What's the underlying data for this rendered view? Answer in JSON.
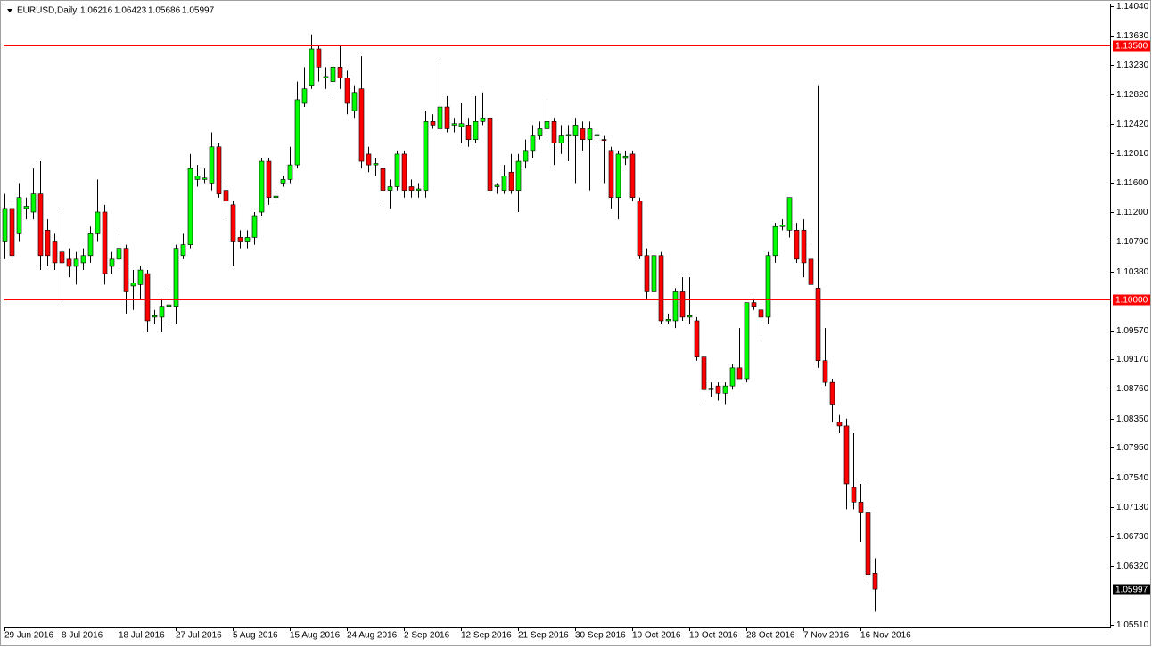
{
  "chart_data": {
    "type": "candlestick",
    "symbol": "EURUSD,Daily",
    "categories": [
      "29 Jun 2016",
      null,
      null,
      null,
      null,
      null,
      null,
      null,
      "8 Jul 2016",
      null,
      null,
      null,
      null,
      null,
      null,
      null,
      "18 Jul 2016",
      null,
      null,
      null,
      null,
      null,
      null,
      null,
      "27 Jul 2016",
      null,
      null,
      null,
      null,
      null,
      null,
      null,
      "5 Aug 2016",
      null,
      null,
      null,
      null,
      null,
      null,
      null,
      "15 Aug 2016",
      null,
      null,
      null,
      null,
      null,
      null,
      null,
      "24 Aug 2016",
      null,
      null,
      null,
      null,
      null,
      null,
      null,
      "2 Sep 2016",
      null,
      null,
      null,
      null,
      null,
      null,
      null,
      "12 Sep 2016",
      null,
      null,
      null,
      null,
      null,
      null,
      null,
      "21 Sep 2016",
      null,
      null,
      null,
      null,
      null,
      null,
      null,
      "30 Sep 2016",
      null,
      null,
      null,
      null,
      null,
      null,
      null,
      "10 Oct 2016",
      null,
      null,
      null,
      null,
      null,
      null,
      null,
      "19 Oct 2016",
      null,
      null,
      null,
      null,
      null,
      null,
      null,
      "28 Oct 2016",
      null,
      null,
      null,
      null,
      null,
      null,
      null,
      "7 Nov 2016",
      null,
      null,
      null,
      null,
      null,
      null,
      null,
      "16 Nov 2016",
      null,
      null
    ],
    "ohlc": [
      [
        1.108,
        1.1145,
        1.1055,
        1.1125
      ],
      [
        1.1125,
        1.1135,
        1.105,
        1.106
      ],
      [
        1.109,
        1.116,
        1.108,
        1.114
      ],
      [
        1.1125,
        1.114,
        1.111,
        1.1128
      ],
      [
        1.112,
        1.118,
        1.111,
        1.1145
      ],
      [
        1.1145,
        1.119,
        1.104,
        1.106
      ],
      [
        1.1095,
        1.111,
        1.1045,
        1.106
      ],
      [
        1.108,
        1.109,
        1.104,
        1.105
      ],
      [
        1.1065,
        1.112,
        1.099,
        1.105
      ],
      [
        1.1055,
        1.107,
        1.103,
        1.1045
      ],
      [
        1.1045,
        1.1065,
        1.102,
        1.1055
      ],
      [
        1.105,
        1.107,
        1.104,
        1.106
      ],
      [
        1.106,
        1.11,
        1.105,
        1.109
      ],
      [
        1.109,
        1.1165,
        1.108,
        1.112
      ],
      [
        1.112,
        1.113,
        1.102,
        1.1035
      ],
      [
        1.1045,
        1.1065,
        1.1035,
        1.1055
      ],
      [
        1.1055,
        1.109,
        1.1045,
        1.107
      ],
      [
        1.107,
        1.1075,
        1.098,
        1.101
      ],
      [
        1.1018,
        1.104,
        1.0985,
        1.1022
      ],
      [
        1.102,
        1.1045,
        1.1,
        1.104
      ],
      [
        1.1035,
        1.104,
        1.0955,
        1.097
      ],
      [
        1.0975,
        1.0985,
        1.0965,
        1.0977
      ],
      [
        1.0975,
        1.1,
        1.0955,
        1.099
      ],
      [
        1.099,
        1.101,
        1.0965,
        1.0992
      ],
      [
        1.099,
        1.1075,
        1.0965,
        1.107
      ],
      [
        1.106,
        1.109,
        1.1055,
        1.1075
      ],
      [
        1.1075,
        1.12,
        1.107,
        1.118
      ],
      [
        1.1165,
        1.1185,
        1.1155,
        1.117
      ],
      [
        1.1165,
        1.118,
        1.116,
        1.1167
      ],
      [
        1.116,
        1.123,
        1.115,
        1.121
      ],
      [
        1.121,
        1.1215,
        1.114,
        1.1145
      ],
      [
        1.115,
        1.116,
        1.111,
        1.1135
      ],
      [
        1.113,
        1.1135,
        1.1045,
        1.108
      ],
      [
        1.1085,
        1.1095,
        1.107,
        1.108
      ],
      [
        1.108,
        1.1095,
        1.107,
        1.1085
      ],
      [
        1.1085,
        1.112,
        1.1075,
        1.1115
      ],
      [
        1.112,
        1.1195,
        1.1115,
        1.119
      ],
      [
        1.119,
        1.1195,
        1.113,
        1.114
      ],
      [
        1.114,
        1.115,
        1.1135,
        1.1142
      ],
      [
        1.116,
        1.117,
        1.1155,
        1.1165
      ],
      [
        1.1165,
        1.121,
        1.116,
        1.1185
      ],
      [
        1.1185,
        1.13,
        1.118,
        1.1275
      ],
      [
        1.127,
        1.132,
        1.1265,
        1.129
      ],
      [
        1.1295,
        1.1365,
        1.129,
        1.1345
      ],
      [
        1.1345,
        1.135,
        1.13,
        1.132
      ],
      [
        1.1305,
        1.132,
        1.129,
        1.1307
      ],
      [
        1.13,
        1.133,
        1.128,
        1.132
      ],
      [
        1.132,
        1.135,
        1.129,
        1.1305
      ],
      [
        1.1305,
        1.1315,
        1.1255,
        1.127
      ],
      [
        1.126,
        1.1295,
        1.125,
        1.1285
      ],
      [
        1.129,
        1.1335,
        1.118,
        1.119
      ],
      [
        1.12,
        1.121,
        1.1175,
        1.1185
      ],
      [
        1.1185,
        1.1195,
        1.117,
        1.1187
      ],
      [
        1.118,
        1.119,
        1.113,
        1.115
      ],
      [
        1.115,
        1.1165,
        1.1125,
        1.1155
      ],
      [
        1.1155,
        1.1205,
        1.115,
        1.12
      ],
      [
        1.12,
        1.1205,
        1.114,
        1.115
      ],
      [
        1.1155,
        1.1165,
        1.114,
        1.115
      ],
      [
        1.115,
        1.116,
        1.114,
        1.1152
      ],
      [
        1.115,
        1.126,
        1.114,
        1.1245
      ],
      [
        1.1245,
        1.1255,
        1.1235,
        1.124
      ],
      [
        1.1235,
        1.1325,
        1.123,
        1.1265
      ],
      [
        1.1265,
        1.128,
        1.123,
        1.1235
      ],
      [
        1.124,
        1.125,
        1.123,
        1.1242
      ],
      [
        1.1238,
        1.127,
        1.1215,
        1.1242
      ],
      [
        1.124,
        1.125,
        1.121,
        1.122
      ],
      [
        1.122,
        1.128,
        1.1215,
        1.1245
      ],
      [
        1.1245,
        1.1285,
        1.124,
        1.125
      ],
      [
        1.125,
        1.1255,
        1.1145,
        1.115
      ],
      [
        1.1155,
        1.116,
        1.1145,
        1.1157
      ],
      [
        1.115,
        1.1185,
        1.1145,
        1.117
      ],
      [
        1.1175,
        1.12,
        1.1145,
        1.115
      ],
      [
        1.115,
        1.12,
        1.112,
        1.119
      ],
      [
        1.119,
        1.122,
        1.118,
        1.1205
      ],
      [
        1.1205,
        1.124,
        1.1195,
        1.1225
      ],
      [
        1.1225,
        1.1245,
        1.122,
        1.1235
      ],
      [
        1.1235,
        1.1275,
        1.1225,
        1.1245
      ],
      [
        1.1245,
        1.125,
        1.1185,
        1.1215
      ],
      [
        1.1215,
        1.124,
        1.12,
        1.1225
      ],
      [
        1.1225,
        1.124,
        1.119,
        1.1227
      ],
      [
        1.1225,
        1.125,
        1.116,
        1.124
      ],
      [
        1.1235,
        1.1245,
        1.1205,
        1.122
      ],
      [
        1.122,
        1.1245,
        1.115,
        1.1235
      ],
      [
        1.1225,
        1.1235,
        1.121,
        1.1227
      ],
      [
        1.122,
        1.1225,
        1.116,
        1.1219
      ],
      [
        1.1205,
        1.121,
        1.1125,
        1.114
      ],
      [
        1.114,
        1.1205,
        1.111,
        1.12
      ],
      [
        1.1195,
        1.1205,
        1.1185,
        1.1197
      ],
      [
        1.12,
        1.1205,
        1.1135,
        1.114
      ],
      [
        1.1135,
        1.114,
        1.1055,
        1.106
      ],
      [
        1.106,
        1.107,
        1.1,
        1.101
      ],
      [
        1.101,
        1.1065,
        1.1,
        1.106
      ],
      [
        1.106,
        1.1065,
        1.0965,
        1.097
      ],
      [
        1.097,
        1.098,
        1.0965,
        1.0972
      ],
      [
        1.097,
        1.1015,
        1.096,
        1.101
      ],
      [
        1.101,
        1.103,
        1.097,
        1.0975
      ],
      [
        1.0975,
        1.103,
        1.0965,
        1.0977
      ],
      [
        1.097,
        1.0975,
        1.0915,
        1.092
      ],
      [
        1.092,
        1.0925,
        1.086,
        1.0875
      ],
      [
        1.0875,
        1.0885,
        1.0865,
        1.0877
      ],
      [
        1.088,
        1.0885,
        1.086,
        1.087
      ],
      [
        1.087,
        1.0885,
        1.0855,
        1.088
      ],
      [
        1.088,
        1.091,
        1.0875,
        1.0905
      ],
      [
        1.0905,
        1.096,
        1.089,
        1.089
      ],
      [
        1.089,
        1.0995,
        1.0885,
        1.0995
      ],
      [
        1.0995,
        1.1,
        1.0985,
        1.099
      ],
      [
        1.0985,
        1.0995,
        1.095,
        1.0975
      ],
      [
        1.0975,
        1.1065,
        1.0965,
        1.106
      ],
      [
        1.106,
        1.1105,
        1.105,
        1.11
      ],
      [
        1.11,
        1.111,
        1.1095,
        1.1102
      ],
      [
        1.1095,
        1.114,
        1.1085,
        1.114
      ],
      [
        1.1095,
        1.1105,
        1.105,
        1.1055
      ],
      [
        1.1095,
        1.111,
        1.103,
        1.105
      ],
      [
        1.1055,
        1.107,
        1.102,
        1.102
      ],
      [
        1.1015,
        1.1295,
        1.0905,
        1.0915
      ],
      [
        1.0915,
        1.096,
        1.088,
        1.0885
      ],
      [
        1.0885,
        1.089,
        1.083,
        1.0855
      ],
      [
        1.083,
        1.084,
        1.0815,
        1.0825
      ],
      [
        1.0825,
        1.0835,
        1.071,
        1.0745
      ],
      [
        1.074,
        1.0815,
        1.071,
        1.072
      ],
      [
        1.072,
        1.0745,
        1.0665,
        1.0705
      ],
      [
        1.0705,
        1.075,
        1.0615,
        1.062
      ],
      [
        1.06216,
        1.06423,
        1.05686,
        1.05997
      ]
    ],
    "up_color": "#00ff00",
    "down_color": "#ff0000",
    "ylim": [
      1.0547,
      1.14077
    ],
    "yticks": [
      {
        "value": 1.1404,
        "label": "1.14040"
      },
      {
        "value": 1.1363,
        "label": "1.13630"
      },
      {
        "value": 1.1323,
        "label": "1.13230"
      },
      {
        "value": 1.1282,
        "label": "1.12820"
      },
      {
        "value": 1.1242,
        "label": "1.12420"
      },
      {
        "value": 1.1201,
        "label": "1.12010"
      },
      {
        "value": 1.116,
        "label": "1.11600"
      },
      {
        "value": 1.112,
        "label": "1.11200"
      },
      {
        "value": 1.1079,
        "label": "1.10790"
      },
      {
        "value": 1.1038,
        "label": "1.10380"
      },
      {
        "value": 1.0957,
        "label": "1.09570"
      },
      {
        "value": 1.0917,
        "label": "1.09170"
      },
      {
        "value": 1.0876,
        "label": "1.08760"
      },
      {
        "value": 1.0835,
        "label": "1.08350"
      },
      {
        "value": 1.0795,
        "label": "1.07950"
      },
      {
        "value": 1.0754,
        "label": "1.07540"
      },
      {
        "value": 1.0713,
        "label": "1.07130"
      },
      {
        "value": 1.0673,
        "label": "1.06730"
      },
      {
        "value": 1.0632,
        "label": "1.06320"
      },
      {
        "value": 1.0551,
        "label": "1.05510"
      }
    ],
    "levels": [
      {
        "value": 1.135,
        "label": "1.13500"
      },
      {
        "value": 1.1,
        "label": "1.10000"
      }
    ],
    "level_color": "#ff0000"
  }
}
